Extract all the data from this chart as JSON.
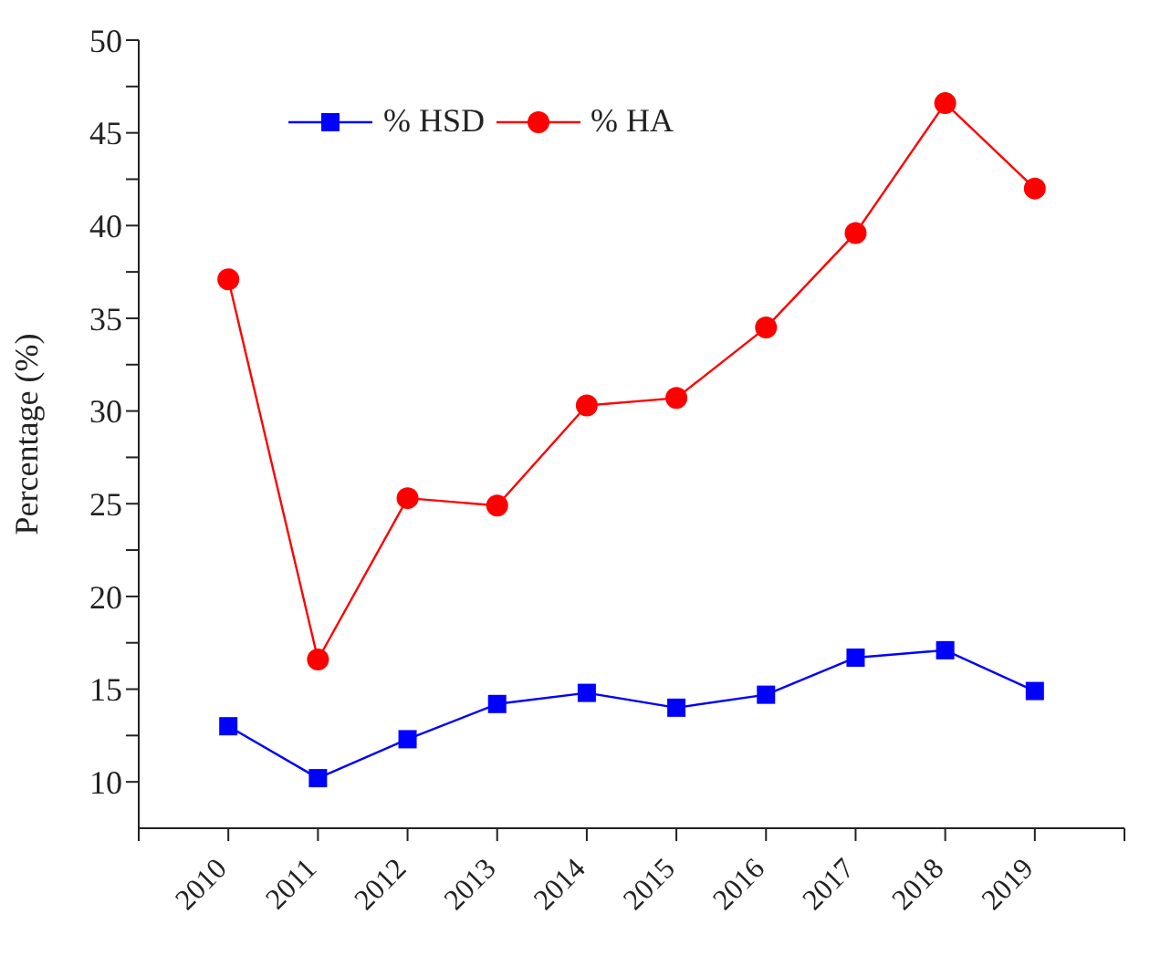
{
  "chart_data": {
    "type": "line",
    "ylabel": "Percentage (%)",
    "x": [
      2010,
      2011,
      2012,
      2013,
      2014,
      2015,
      2016,
      2017,
      2018,
      2019
    ],
    "series": [
      {
        "name": "% HSD",
        "color": "#0000ff",
        "marker": "square",
        "values": [
          13.0,
          10.2,
          12.3,
          14.2,
          14.8,
          14.0,
          14.7,
          16.7,
          17.1,
          14.9
        ]
      },
      {
        "name": "% HA",
        "color": "#ff0000",
        "marker": "circle",
        "values": [
          37.1,
          16.6,
          25.3,
          24.9,
          30.3,
          30.7,
          34.5,
          39.6,
          46.6,
          42.0
        ]
      }
    ],
    "xlim": [
      2009,
      2020
    ],
    "xticks": [
      {
        "value": 2009,
        "label": null
      },
      2010,
      2011,
      2012,
      2013,
      2014,
      2015,
      2016,
      2017,
      2018,
      2019,
      {
        "value": 2020,
        "label": null
      }
    ],
    "ylim": [
      7.5,
      50
    ],
    "yticks": [
      10,
      {
        "value": 12.5,
        "label": null
      },
      15,
      {
        "value": 17.5,
        "label": null
      },
      20,
      {
        "value": 22.5,
        "label": null
      },
      25,
      {
        "value": 27.5,
        "label": null
      },
      30,
      {
        "value": 32.5,
        "label": null
      },
      35,
      {
        "value": 37.5,
        "label": null
      },
      40,
      {
        "value": 42.5,
        "label": null
      },
      45,
      {
        "value": 47.5,
        "label": null
      },
      50
    ],
    "grid": false,
    "legend": "top left",
    "line_style": "solid"
  }
}
